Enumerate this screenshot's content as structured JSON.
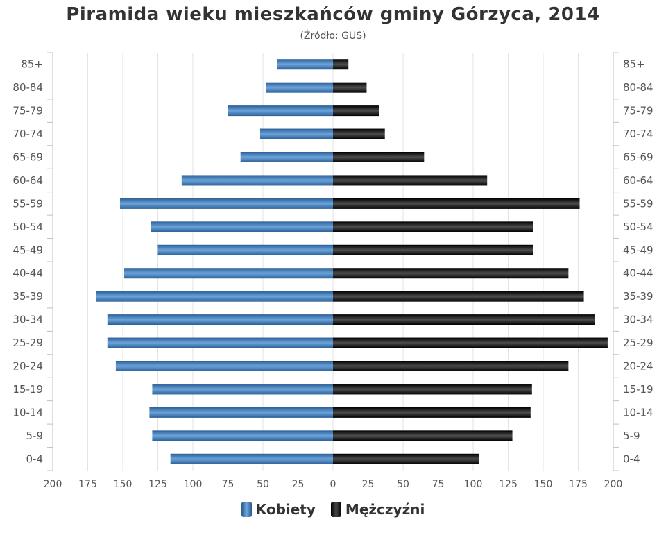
{
  "chart_data": {
    "type": "bar",
    "title": "Piramida wieku mieszkańców gminy Górzyca, 2014",
    "subtitle": "(Źródło: GUS)",
    "categories": [
      "85+",
      "80-84",
      "75-79",
      "70-74",
      "65-69",
      "60-64",
      "55-59",
      "50-54",
      "45-49",
      "40-44",
      "35-39",
      "30-34",
      "25-29",
      "20-24",
      "15-19",
      "10-14",
      "5-9",
      "0-4"
    ],
    "series": [
      {
        "name": "Kobiety",
        "color": "#3a78b8",
        "values": [
          40,
          48,
          75,
          52,
          66,
          108,
          152,
          130,
          125,
          149,
          169,
          161,
          161,
          155,
          129,
          131,
          129,
          116
        ]
      },
      {
        "name": "Mężczyźni",
        "color": "#1a1a1a",
        "values": [
          11,
          24,
          33,
          37,
          65,
          110,
          176,
          143,
          143,
          168,
          179,
          187,
          196,
          168,
          142,
          141,
          128,
          104
        ]
      }
    ],
    "xlim": [
      -200,
      200
    ],
    "xticks": [
      -200,
      -175,
      -150,
      -125,
      -100,
      -75,
      -50,
      -25,
      0,
      25,
      50,
      75,
      100,
      125,
      150,
      175,
      200
    ],
    "xtick_labels": [
      "200",
      "175",
      "150",
      "125",
      "100",
      "75",
      "50",
      "25",
      "0",
      "25",
      "50",
      "75",
      "100",
      "125",
      "150",
      "175",
      "200"
    ],
    "grid": "vertical",
    "legend_position": "bottom-center"
  }
}
